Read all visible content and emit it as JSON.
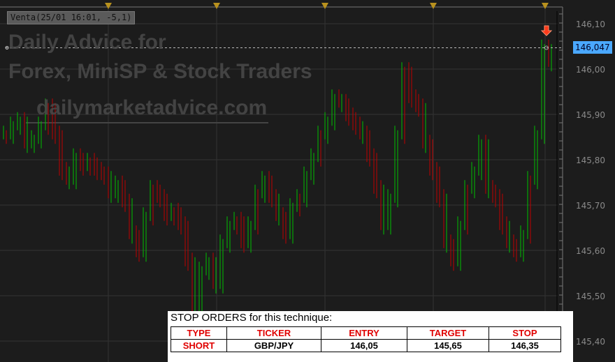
{
  "watermark": {
    "line1": "Daily Advice for",
    "line2": "Forex, MiniSP & Stock Traders",
    "line3": "dailymarketadvice.com"
  },
  "order_tag": "Venta(25/01 16:01, -5,1)",
  "current_price_label": "146,047",
  "colors": {
    "background": "#1c1c1c",
    "up": "#00c000",
    "down": "#c00000",
    "grid": "#333333",
    "price_label": "#4aa8ff",
    "header_red": "#e00000"
  },
  "chart_data": {
    "type": "bar",
    "yaxis": {
      "ylim": [
        145.37,
        146.13
      ],
      "ticks": [
        "146,10",
        "146,00",
        "145,90",
        "145,80",
        "145,70",
        "145,60",
        "145,50",
        "145,40"
      ],
      "tick_values": [
        146.1,
        146.0,
        145.9,
        145.8,
        145.7,
        145.6,
        145.5,
        145.4
      ],
      "position": "right"
    },
    "grid": true,
    "current_price": 146.047,
    "closes": [
      145.86,
      145.88,
      145.89,
      145.84,
      145.85,
      145.88,
      145.92,
      145.86,
      145.78,
      145.76,
      145.81,
      145.79,
      145.8,
      145.78,
      145.77,
      145.73,
      145.75,
      145.71,
      145.64,
      145.6,
      145.68,
      145.74,
      145.72,
      145.68,
      145.69,
      145.66,
      145.58,
      145.48,
      145.56,
      145.58,
      145.53,
      145.62,
      145.66,
      145.67,
      145.62,
      145.66,
      145.73,
      145.76,
      145.72,
      145.68,
      145.64,
      145.7,
      145.72,
      145.77,
      145.81,
      145.86,
      145.89,
      145.94,
      145.93,
      145.9,
      145.88,
      145.86,
      145.81,
      145.74,
      145.66,
      145.72,
      145.86,
      146.0,
      145.94,
      145.92,
      145.84,
      145.78,
      145.72,
      145.62,
      145.58,
      145.66,
      145.74,
      145.78,
      145.84,
      145.74,
      145.72,
      145.66,
      145.62,
      145.6,
      145.64,
      145.76,
      145.86,
      146.05,
      146.02
    ],
    "signal": {
      "type": "sell-arrow",
      "price": 146.08
    }
  },
  "orders_panel": {
    "caption": "STOP ORDERS for this technique:",
    "headers": [
      "TYPE",
      "TICKER",
      "ENTRY",
      "TARGET",
      "STOP"
    ],
    "row": [
      "SHORT",
      "GBP/JPY",
      "146,05",
      "145,65",
      "146,35"
    ]
  }
}
